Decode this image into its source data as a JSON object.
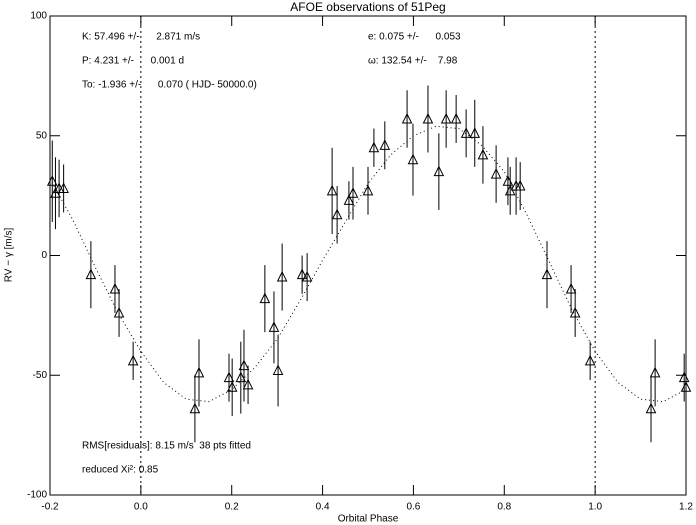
{
  "chart_data": {
    "type": "scatter",
    "title": "AFOE observations of 51Peg",
    "x_label": "Orbital Phase",
    "y_label": "RV − γ [m/s]",
    "xlim": [
      -0.2,
      1.2
    ],
    "ylim": [
      -100,
      100
    ],
    "xticks": [
      -0.2,
      {
        "value": 0,
        "label": "0.0"
      },
      0.2,
      0.4,
      0.6,
      0.8,
      {
        "value": 1,
        "label": "1.0"
      },
      1.2
    ],
    "yticks": [
      -100,
      -50,
      0,
      50,
      100
    ],
    "vlines": [
      0,
      1
    ],
    "annotations": [
      "K: 57.496 +/-      2.871 m/s",
      "P: 4.231 +/-      0.001 d",
      "To: -1.936 +/-      0.070 ( HJD- 50000.0)",
      "e: 0.075 +/-      0.053",
      "ω: 132.54 +/-    7.98",
      "RMS[residuals]: 8.15 m/s  38 pts fitted",
      "reduced Xi²: 0.85"
    ],
    "series": [
      {
        "x": [
          -0.195,
          -0.188,
          -0.18,
          -0.17,
          -0.11,
          -0.057,
          -0.048,
          -0.017,
          0.119,
          0.128,
          0.194,
          0.201,
          0.22,
          0.227,
          0.236,
          0.273,
          0.293,
          0.302,
          0.311,
          0.355,
          0.366,
          0.421,
          0.432,
          0.458,
          0.467,
          0.5,
          0.513,
          0.537,
          0.586,
          0.599,
          0.632,
          0.656,
          0.672,
          0.694,
          0.716,
          0.735,
          0.753,
          0.782,
          0.808,
          0.813,
          0.826,
          0.835,
          0.894,
          0.947,
          0.956,
          0.989,
          1.123,
          1.132,
          1.196,
          1.2
        ],
        "values": [
          31,
          26,
          28,
          28,
          -8,
          -14,
          -24,
          -44,
          -64,
          -49,
          -51,
          -55,
          -51,
          -46,
          -54,
          -18,
          -30,
          -48,
          -9,
          -8,
          -9,
          27,
          17,
          23,
          26,
          27,
          45,
          46,
          57,
          40,
          57,
          35,
          57,
          57,
          51,
          51,
          42,
          34,
          31,
          27,
          29,
          29,
          -8,
          -14,
          -24,
          -44,
          -64,
          -49,
          -51,
          -55
        ],
        "errors": [
          17,
          15,
          12,
          10,
          14,
          10,
          10,
          8,
          14,
          14,
          10,
          12,
          15,
          15,
          8,
          14,
          15,
          15,
          14,
          8,
          10,
          18,
          12,
          8,
          11,
          10,
          8,
          10,
          12,
          15,
          14,
          16,
          12,
          10,
          10,
          14,
          12,
          12,
          10,
          10,
          12,
          10,
          14,
          10,
          10,
          8,
          14,
          14,
          10,
          12
        ]
      }
    ],
    "fit": {
      "x": [
        -0.2,
        -0.15,
        -0.1,
        -0.05,
        0,
        0.05,
        0.1,
        0.15,
        0.2,
        0.25,
        0.3,
        0.35,
        0.4,
        0.45,
        0.5,
        0.55,
        0.6,
        0.65,
        0.7,
        0.75,
        0.8,
        0.85,
        0.9,
        0.95,
        1,
        1.05,
        1.1,
        1.15,
        1.2
      ],
      "values": [
        32,
        15,
        -5,
        -24,
        -40,
        -53,
        -60,
        -61,
        -56,
        -47,
        -35,
        -19,
        -2,
        14,
        30,
        42,
        50,
        54,
        53,
        46,
        35,
        17,
        -3,
        -23,
        -40,
        -53,
        -60,
        -61,
        -56
      ]
    }
  }
}
